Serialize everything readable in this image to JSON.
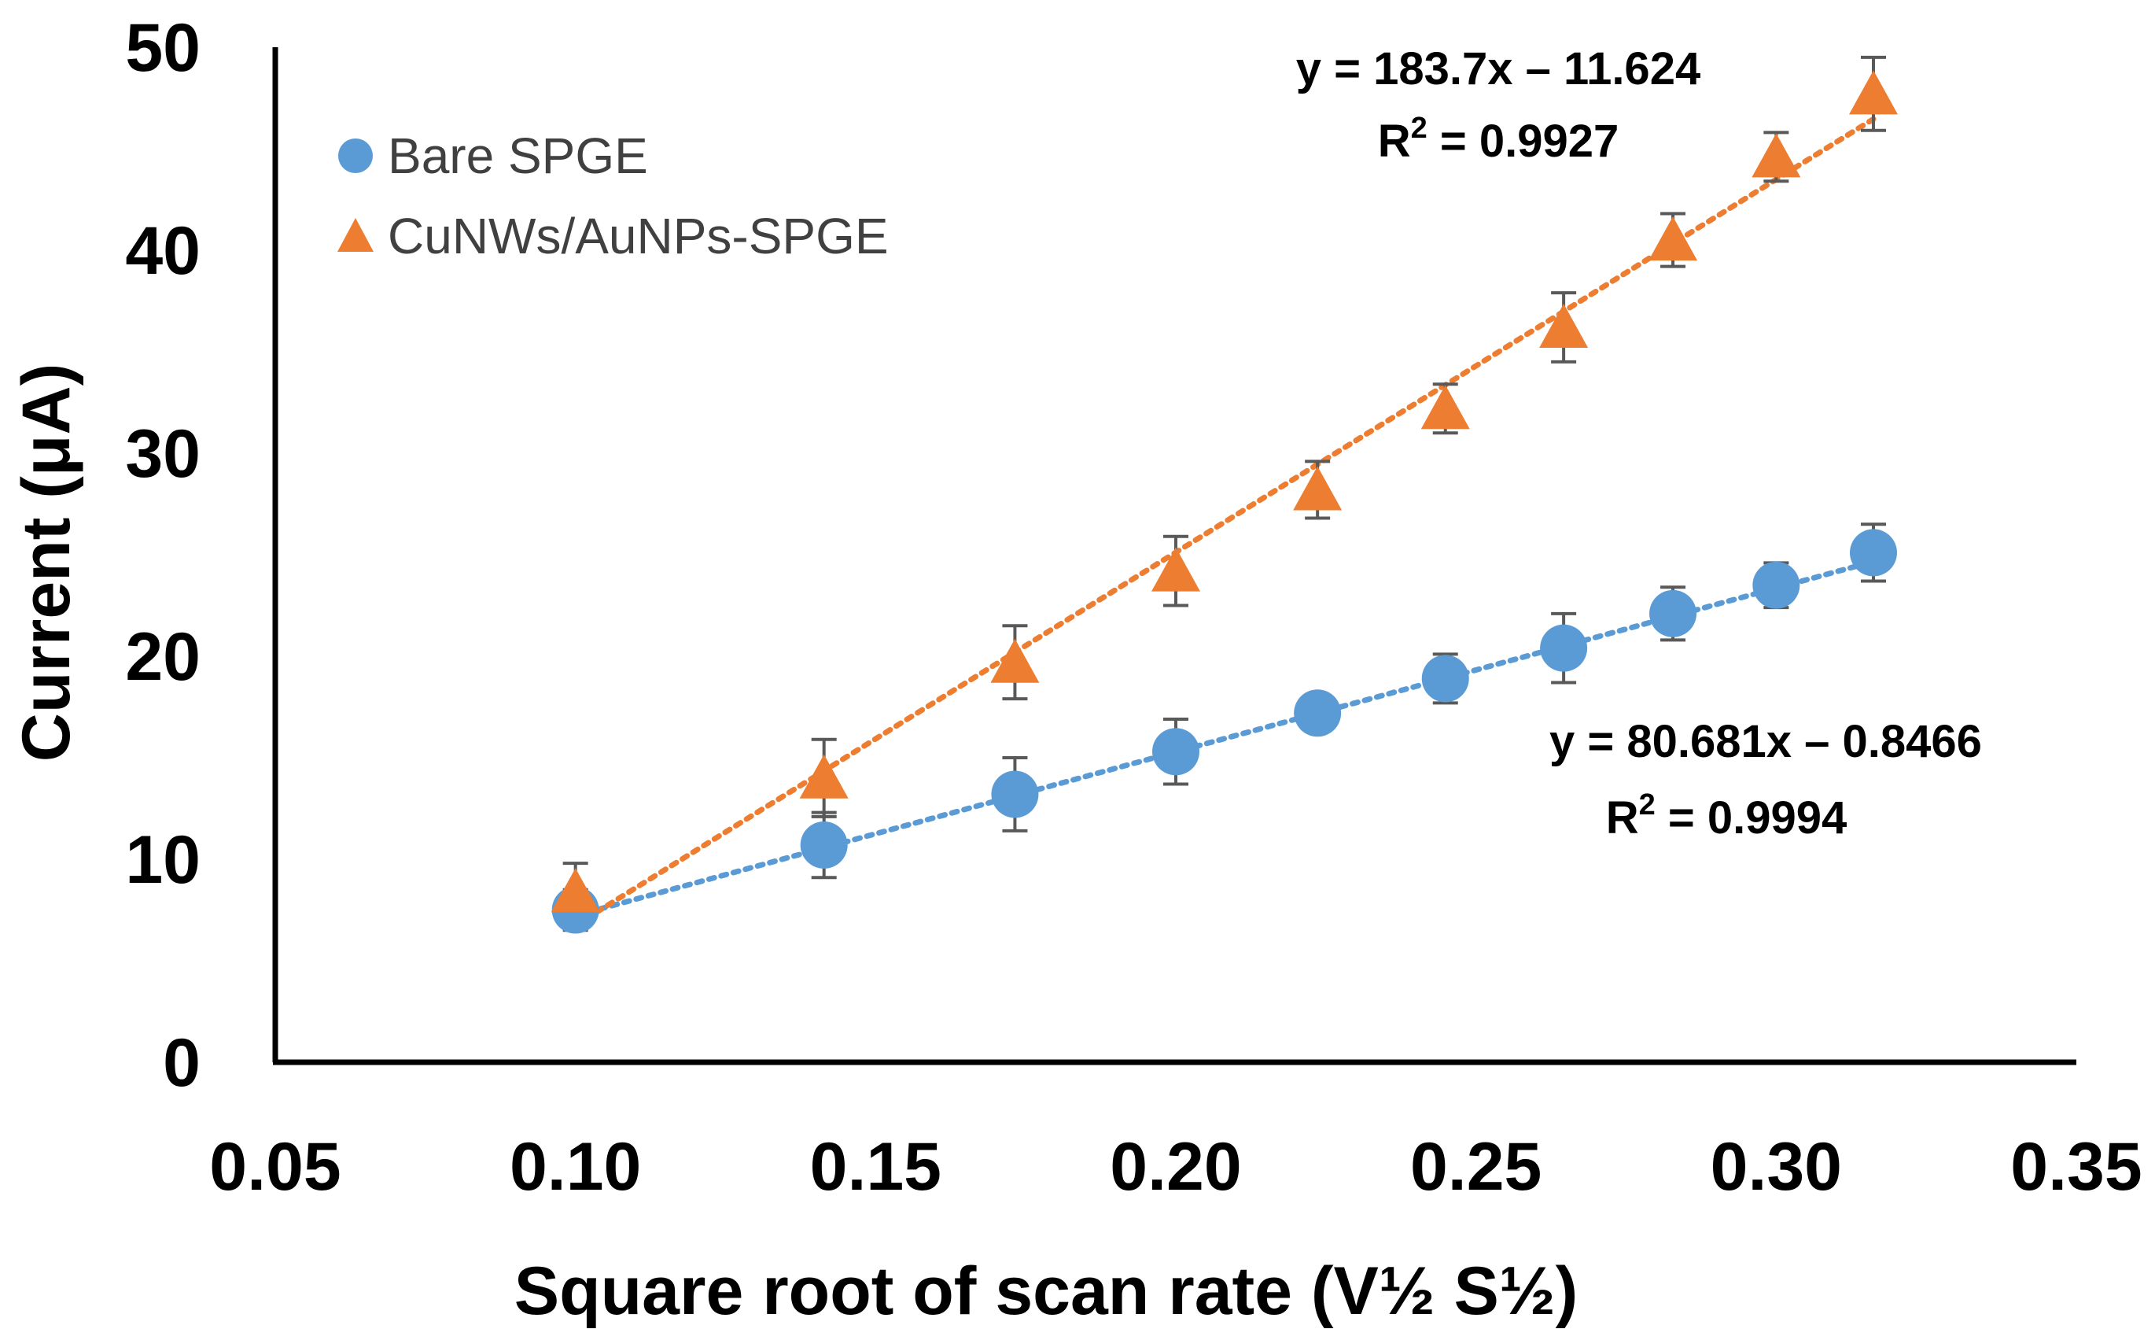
{
  "chart_data": {
    "type": "scatter",
    "title": "",
    "xlabel": "Square root of scan rate (V½ S½)",
    "ylabel": "Current (μA)",
    "xlim": [
      0.05,
      0.35
    ],
    "ylim": [
      0,
      50
    ],
    "x_ticks": [
      "0.05",
      "0.10",
      "0.15",
      "0.20",
      "0.25",
      "0.30",
      "0.35"
    ],
    "y_ticks": [
      "0",
      "10",
      "20",
      "30",
      "40",
      "50"
    ],
    "grid": false,
    "legend_position": "top-left",
    "series": [
      {
        "name": "Bare SPGE",
        "marker": "circle",
        "color": "#5B9BD5",
        "x": [
          0.1,
          0.1414,
          0.1732,
          0.2,
          0.2236,
          0.2449,
          0.2646,
          0.2828,
          0.3,
          0.3162
        ],
        "y": [
          7.5,
          10.7,
          13.2,
          15.3,
          17.2,
          18.9,
          20.4,
          22.1,
          23.5,
          25.1
        ],
        "err": [
          1.0,
          1.6,
          1.8,
          1.6,
          0.6,
          1.2,
          1.7,
          1.3,
          1.1,
          1.4
        ],
        "trendline": {
          "slope": 80.681,
          "intercept": -0.8466,
          "equation": "y = 80.681x – 0.8466",
          "r2_label": "R",
          "r2_sup": "2",
          "r2_value": " = 0.9994"
        }
      },
      {
        "name": "CuNWs/AuNPs-SPGE",
        "marker": "triangle",
        "color": "#ED7D31",
        "x": [
          0.1,
          0.1414,
          0.1732,
          0.2,
          0.2236,
          0.2449,
          0.2646,
          0.2828,
          0.3,
          0.3162
        ],
        "y": [
          8.4,
          14.0,
          19.7,
          24.2,
          28.2,
          32.2,
          36.2,
          40.5,
          44.6,
          47.7
        ],
        "err": [
          1.4,
          1.9,
          1.8,
          1.7,
          1.4,
          1.2,
          1.7,
          1.3,
          1.2,
          1.8
        ],
        "trendline": {
          "slope": 183.7,
          "intercept": -11.624,
          "equation": "y = 183.7x – 11.624",
          "r2_label": "R",
          "r2_sup": "2",
          "r2_value": " = 0.9927"
        }
      }
    ]
  }
}
